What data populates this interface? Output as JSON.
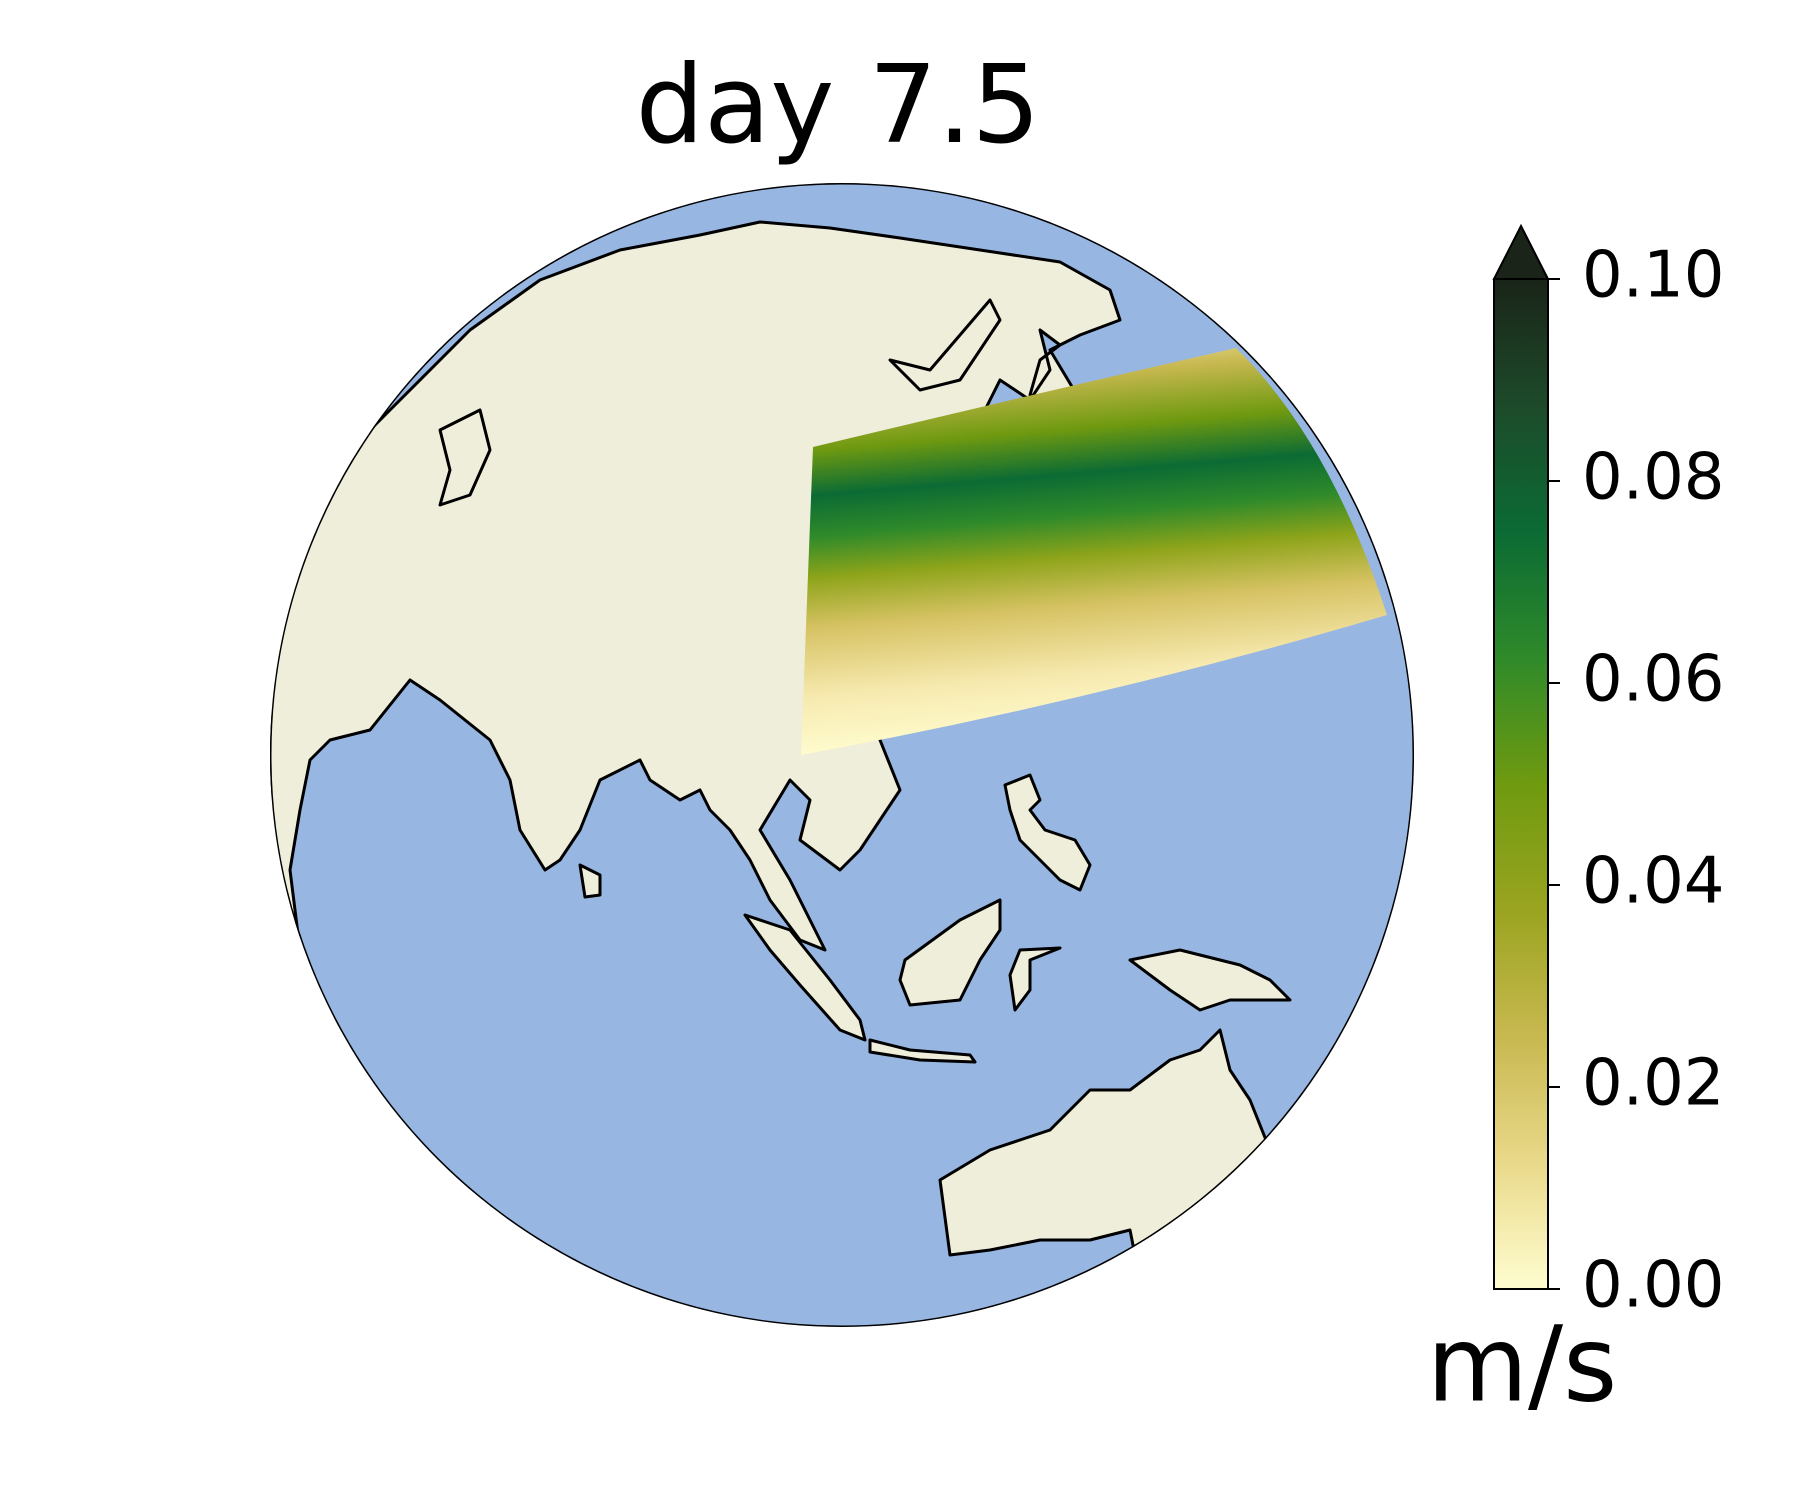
{
  "map": {
    "title": "day 7.5",
    "colorbar": {
      "label": "m/s",
      "lim": [
        0,
        0.1
      ],
      "ticks": [
        {
          "value": 0,
          "label": "0.00"
        },
        {
          "value": 0.02,
          "label": "0.02"
        },
        {
          "value": 0.04,
          "label": "0.04"
        },
        {
          "value": 0.06,
          "label": "0.06"
        },
        {
          "value": 0.08,
          "label": "0.08"
        },
        {
          "value": 0.1,
          "label": "0.10"
        }
      ],
      "extend": "max",
      "colors": [
        "#fffdd0",
        "#e9d98a",
        "#c8b850",
        "#9aa420",
        "#6f9a10",
        "#2f8a2a",
        "#0b6b34",
        "#1d4a2a",
        "#1a2418"
      ]
    }
  }
}
